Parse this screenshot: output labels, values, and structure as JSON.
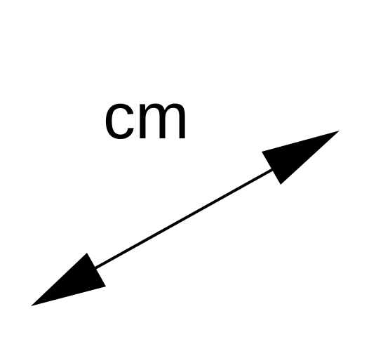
{
  "diagram": {
    "label": "cm",
    "colors": {
      "stroke": "#000000",
      "background": "#ffffff"
    },
    "icon": "double-headed-arrow-icon"
  }
}
